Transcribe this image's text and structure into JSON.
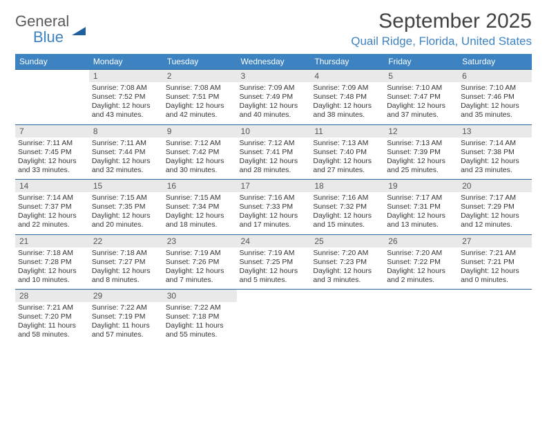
{
  "logo": {
    "general": "General",
    "blue": "Blue"
  },
  "month_title": "September 2025",
  "location": "Quail Ridge, Florida, United States",
  "colors": {
    "brand_blue": "#3d83c2",
    "border_blue": "#2f6698",
    "daynum_bg": "#e9e9e9",
    "text_dark": "#424242"
  },
  "weekdays": [
    "Sunday",
    "Monday",
    "Tuesday",
    "Wednesday",
    "Thursday",
    "Friday",
    "Saturday"
  ],
  "first_weekday_index": 1,
  "days": [
    {
      "n": 1,
      "sr": "7:08 AM",
      "ss": "7:52 PM",
      "dh": 12,
      "dm": 43
    },
    {
      "n": 2,
      "sr": "7:08 AM",
      "ss": "7:51 PM",
      "dh": 12,
      "dm": 42
    },
    {
      "n": 3,
      "sr": "7:09 AM",
      "ss": "7:49 PM",
      "dh": 12,
      "dm": 40
    },
    {
      "n": 4,
      "sr": "7:09 AM",
      "ss": "7:48 PM",
      "dh": 12,
      "dm": 38
    },
    {
      "n": 5,
      "sr": "7:10 AM",
      "ss": "7:47 PM",
      "dh": 12,
      "dm": 37
    },
    {
      "n": 6,
      "sr": "7:10 AM",
      "ss": "7:46 PM",
      "dh": 12,
      "dm": 35
    },
    {
      "n": 7,
      "sr": "7:11 AM",
      "ss": "7:45 PM",
      "dh": 12,
      "dm": 33
    },
    {
      "n": 8,
      "sr": "7:11 AM",
      "ss": "7:44 PM",
      "dh": 12,
      "dm": 32
    },
    {
      "n": 9,
      "sr": "7:12 AM",
      "ss": "7:42 PM",
      "dh": 12,
      "dm": 30
    },
    {
      "n": 10,
      "sr": "7:12 AM",
      "ss": "7:41 PM",
      "dh": 12,
      "dm": 28
    },
    {
      "n": 11,
      "sr": "7:13 AM",
      "ss": "7:40 PM",
      "dh": 12,
      "dm": 27
    },
    {
      "n": 12,
      "sr": "7:13 AM",
      "ss": "7:39 PM",
      "dh": 12,
      "dm": 25
    },
    {
      "n": 13,
      "sr": "7:14 AM",
      "ss": "7:38 PM",
      "dh": 12,
      "dm": 23
    },
    {
      "n": 14,
      "sr": "7:14 AM",
      "ss": "7:37 PM",
      "dh": 12,
      "dm": 22
    },
    {
      "n": 15,
      "sr": "7:15 AM",
      "ss": "7:35 PM",
      "dh": 12,
      "dm": 20
    },
    {
      "n": 16,
      "sr": "7:15 AM",
      "ss": "7:34 PM",
      "dh": 12,
      "dm": 18
    },
    {
      "n": 17,
      "sr": "7:16 AM",
      "ss": "7:33 PM",
      "dh": 12,
      "dm": 17
    },
    {
      "n": 18,
      "sr": "7:16 AM",
      "ss": "7:32 PM",
      "dh": 12,
      "dm": 15
    },
    {
      "n": 19,
      "sr": "7:17 AM",
      "ss": "7:31 PM",
      "dh": 12,
      "dm": 13
    },
    {
      "n": 20,
      "sr": "7:17 AM",
      "ss": "7:29 PM",
      "dh": 12,
      "dm": 12
    },
    {
      "n": 21,
      "sr": "7:18 AM",
      "ss": "7:28 PM",
      "dh": 12,
      "dm": 10
    },
    {
      "n": 22,
      "sr": "7:18 AM",
      "ss": "7:27 PM",
      "dh": 12,
      "dm": 8
    },
    {
      "n": 23,
      "sr": "7:19 AM",
      "ss": "7:26 PM",
      "dh": 12,
      "dm": 7
    },
    {
      "n": 24,
      "sr": "7:19 AM",
      "ss": "7:25 PM",
      "dh": 12,
      "dm": 5
    },
    {
      "n": 25,
      "sr": "7:20 AM",
      "ss": "7:23 PM",
      "dh": 12,
      "dm": 3
    },
    {
      "n": 26,
      "sr": "7:20 AM",
      "ss": "7:22 PM",
      "dh": 12,
      "dm": 2
    },
    {
      "n": 27,
      "sr": "7:21 AM",
      "ss": "7:21 PM",
      "dh": 12,
      "dm": 0
    },
    {
      "n": 28,
      "sr": "7:21 AM",
      "ss": "7:20 PM",
      "dh": 11,
      "dm": 58
    },
    {
      "n": 29,
      "sr": "7:22 AM",
      "ss": "7:19 PM",
      "dh": 11,
      "dm": 57
    },
    {
      "n": 30,
      "sr": "7:22 AM",
      "ss": "7:18 PM",
      "dh": 11,
      "dm": 55
    }
  ],
  "labels": {
    "sunrise": "Sunrise:",
    "sunset": "Sunset:",
    "daylight": "Daylight:",
    "hours": "hours",
    "and": "and",
    "minutes": "minutes."
  }
}
